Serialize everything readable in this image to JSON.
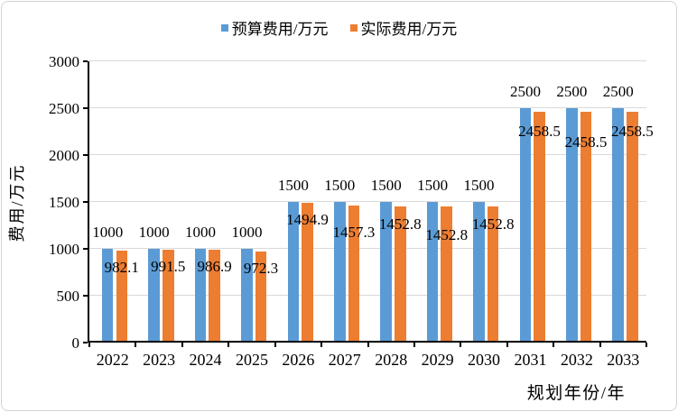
{
  "chart_data": {
    "type": "bar",
    "categories": [
      "2022",
      "2023",
      "2024",
      "2025",
      "2026",
      "2027",
      "2028",
      "2029",
      "2030",
      "2031",
      "2032",
      "2033"
    ],
    "series": [
      {
        "name": "预算费用/万元",
        "color": "#5B9BD5",
        "values": [
          1000,
          1000,
          1000,
          1000,
          1500,
          1500,
          1500,
          1500,
          1500,
          2500,
          2500,
          2500
        ]
      },
      {
        "name": "实际费用/万元",
        "color": "#ED7D31",
        "values": [
          982.1,
          991.5,
          986.9,
          972.3,
          1494.9,
          1457.3,
          1452.8,
          1452.8,
          1452.8,
          2458.5,
          2458.5,
          2458.5
        ]
      }
    ],
    "title": "",
    "xlabel": "规划年份/年",
    "ylabel": "费用/万元",
    "ylim": [
      0,
      3000
    ],
    "ytick_step": 500,
    "grid": true,
    "legend_position": "top",
    "data_labels": true
  }
}
